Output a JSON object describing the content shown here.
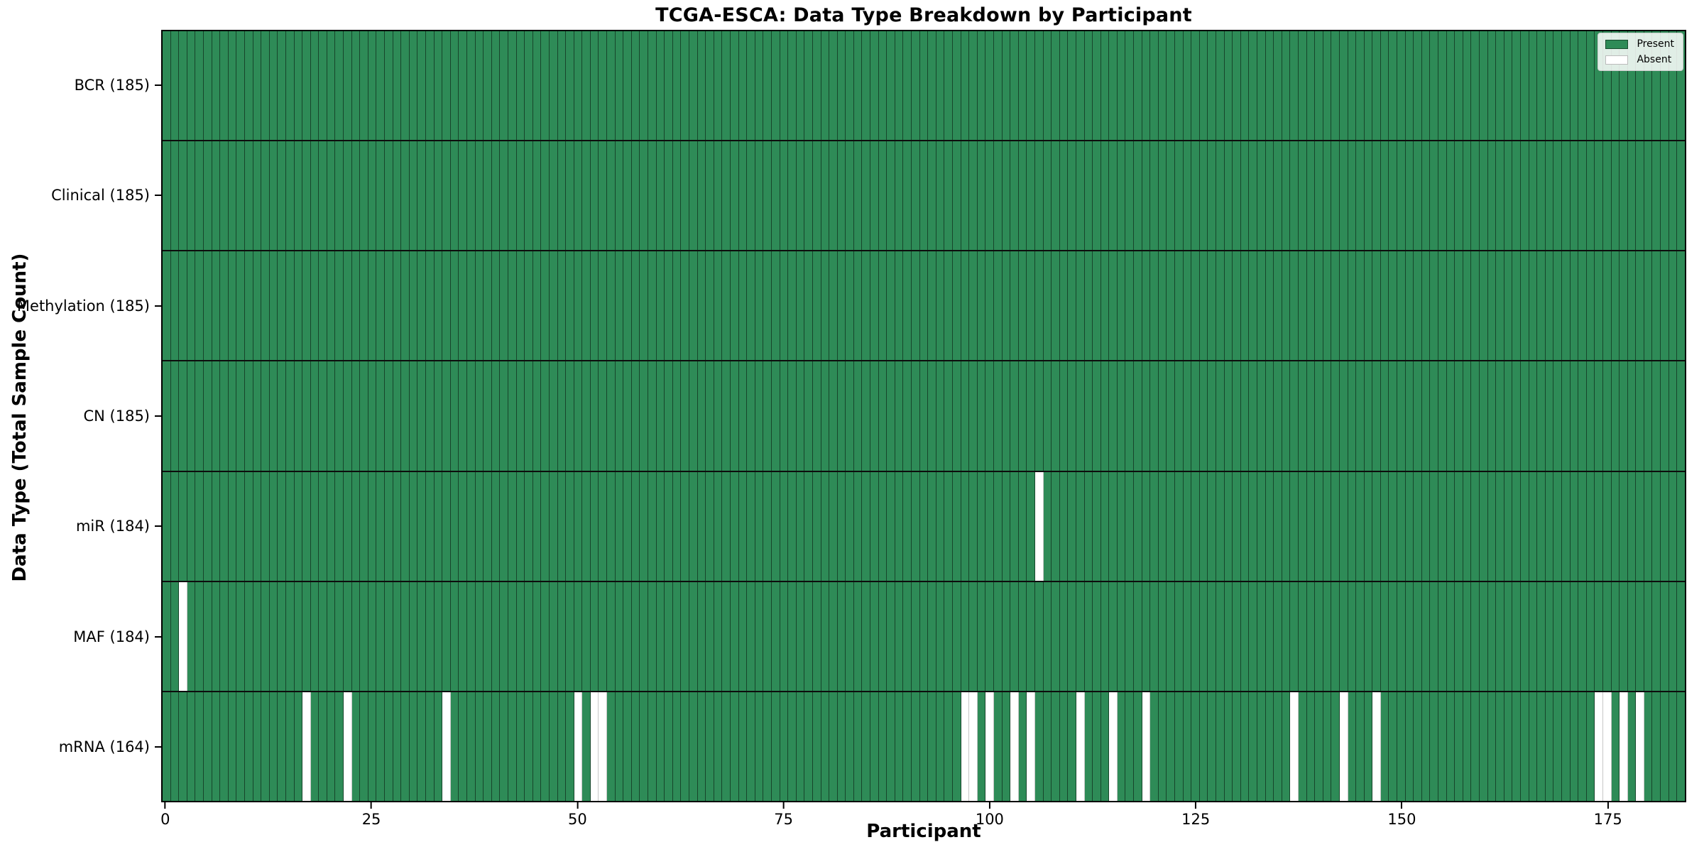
{
  "chart_data": {
    "type": "heatmap",
    "title": "TCGA-ESCA: Data Type Breakdown by Participant",
    "xlabel": "Participant",
    "ylabel": "Data Type (Total Sample Count)",
    "n_participants": 185,
    "x_ticks": [
      0,
      25,
      50,
      75,
      100,
      125,
      150,
      175
    ],
    "x_range": [
      0,
      185
    ],
    "grid": false,
    "legend_position": "upper right",
    "colors": {
      "present": "#2e8b57",
      "absent": "#ffffff",
      "cell_edge": "rgba(0,0,0,0.5)",
      "row_divider": "#0d0d0d"
    },
    "legend": [
      {
        "label": "Present",
        "color": "#2e8b57"
      },
      {
        "label": "Absent",
        "color": "#ffffff"
      }
    ],
    "rows": [
      {
        "key": "bcr",
        "label": "BCR (185)",
        "total": 185,
        "present_count": 185,
        "absent_participants": []
      },
      {
        "key": "clinical",
        "label": "Clinical (185)",
        "total": 185,
        "present_count": 185,
        "absent_participants": []
      },
      {
        "key": "methylation",
        "label": "Methylation (185)",
        "total": 185,
        "present_count": 185,
        "absent_participants": []
      },
      {
        "key": "cn",
        "label": "CN (185)",
        "total": 185,
        "present_count": 185,
        "absent_participants": []
      },
      {
        "key": "mir",
        "label": "miR (184)",
        "total": 185,
        "present_count": 184,
        "absent_participants": [
          106
        ]
      },
      {
        "key": "maf",
        "label": "MAF (184)",
        "total": 185,
        "present_count": 184,
        "absent_participants": [
          2
        ]
      },
      {
        "key": "mrna",
        "label": "mRNA (164)",
        "total": 185,
        "present_count": 164,
        "absent_participants": [
          17,
          22,
          34,
          50,
          52,
          53,
          97,
          98,
          100,
          103,
          105,
          111,
          115,
          119,
          137,
          143,
          147,
          174,
          175,
          177,
          179
        ]
      }
    ]
  }
}
